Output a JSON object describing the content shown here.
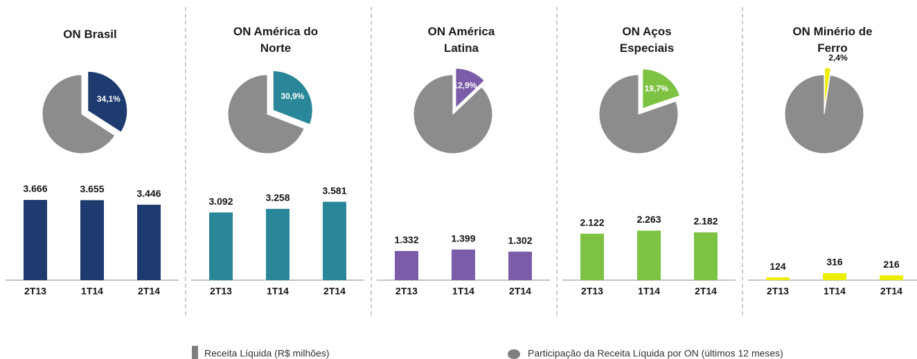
{
  "chart_data": [
    {
      "type": "pie",
      "title": "ON Brasil",
      "values": [
        34.1,
        65.9
      ],
      "value_labels": [
        "34,1%",
        null
      ],
      "colors": [
        "#1e3b6f",
        "#8c8c8c"
      ]
    },
    {
      "type": "bar",
      "categories": [
        "2T13",
        "1T14",
        "2T14"
      ],
      "values": [
        3666,
        3655,
        3446
      ],
      "value_labels": [
        "3.666",
        "3.655",
        "3.446"
      ],
      "color": "#1e3b6f"
    },
    {
      "type": "pie",
      "title": "ON América do Norte",
      "values": [
        30.9,
        69.1
      ],
      "value_labels": [
        "30,9%",
        null
      ],
      "colors": [
        "#2a8799",
        "#8c8c8c"
      ]
    },
    {
      "type": "bar",
      "categories": [
        "2T13",
        "1T14",
        "2T14"
      ],
      "values": [
        3092,
        3258,
        3581
      ],
      "value_labels": [
        "3.092",
        "3.258",
        "3.581"
      ],
      "color": "#2a8799"
    },
    {
      "type": "pie",
      "title": "ON América Latina",
      "values": [
        12.9,
        87.1
      ],
      "value_labels": [
        "12,9%",
        null
      ],
      "colors": [
        "#7a5ca8",
        "#8c8c8c"
      ]
    },
    {
      "type": "bar",
      "categories": [
        "2T13",
        "1T14",
        "2T14"
      ],
      "values": [
        1332,
        1399,
        1302
      ],
      "value_labels": [
        "1.332",
        "1.399",
        "1.302"
      ],
      "color": "#7a5ca8"
    },
    {
      "type": "pie",
      "title": "ON Aços Especiais",
      "values": [
        19.7,
        80.3
      ],
      "value_labels": [
        "19,7%",
        null
      ],
      "colors": [
        "#7dc242",
        "#8c8c8c"
      ]
    },
    {
      "type": "bar",
      "categories": [
        "2T13",
        "1T14",
        "2T14"
      ],
      "values": [
        2122,
        2263,
        2182
      ],
      "value_labels": [
        "2.122",
        "2.263",
        "2.182"
      ],
      "color": "#7dc242"
    },
    {
      "type": "pie",
      "title": "ON Minério de Ferro",
      "values": [
        2.4,
        97.6
      ],
      "value_labels": [
        "2,4%",
        null
      ],
      "colors": [
        "#eded00",
        "#8c8c8c"
      ]
    },
    {
      "type": "bar",
      "categories": [
        "2T13",
        "1T14",
        "2T14"
      ],
      "values": [
        124,
        316,
        216
      ],
      "value_labels": [
        "124",
        "316",
        "216"
      ],
      "color": "#eded00"
    }
  ],
  "legend": [
    {
      "label": "Receita Líquida (R$ milhões)"
    },
    {
      "label": "Participação da Receita Líquida por ON (últimos 12 meses)"
    }
  ]
}
